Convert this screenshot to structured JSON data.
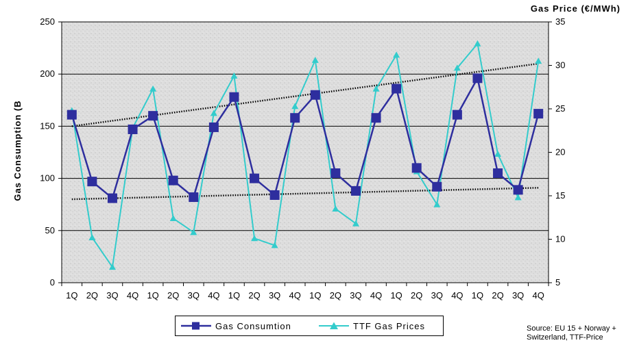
{
  "chart_data": {
    "type": "line",
    "categories": [
      "1Q",
      "2Q",
      "3Q",
      "4Q",
      "1Q",
      "2Q",
      "3Q",
      "4Q",
      "1Q",
      "2Q",
      "3Q",
      "4Q",
      "1Q",
      "2Q",
      "3Q",
      "4Q",
      "1Q",
      "2Q",
      "3Q",
      "4Q",
      "1Q",
      "2Q",
      "3Q",
      "4Q"
    ],
    "ylabel": "Gas Consumption (B",
    "y2label": "Gas Price (€/MWh)",
    "ylim": [
      0,
      250
    ],
    "y2lim": [
      5,
      35
    ],
    "yticks": [
      "0",
      "50",
      "100",
      "150",
      "200",
      "250"
    ],
    "y2ticks": [
      "5",
      "10",
      "15",
      "20",
      "25",
      "30",
      "35"
    ],
    "grid": true,
    "legend_position": "bottom",
    "series": [
      {
        "name": "Gas Consumtion",
        "axis": "left",
        "color": "#2e2e9e",
        "marker": "square",
        "values": [
          161,
          97,
          81,
          147,
          160,
          98,
          82,
          149,
          178,
          100,
          84,
          158,
          180,
          105,
          88,
          158,
          186,
          110,
          92,
          161,
          196,
          105,
          89,
          162
        ]
      },
      {
        "name": "TTF Gas Prices",
        "axis": "right",
        "color": "#33cccc",
        "marker": "triangle",
        "values": [
          24.8,
          10.2,
          6.8,
          22.8,
          27.3,
          12.4,
          10.8,
          24.5,
          28.8,
          10.1,
          9.3,
          25.3,
          30.6,
          13.5,
          11.8,
          27.3,
          31.2,
          17.8,
          14.0,
          29.7,
          32.5,
          19.8,
          14.8,
          30.5
        ]
      }
    ],
    "trendlines": [
      {
        "series": "Gas Consumtion peaks",
        "style": "dotted",
        "from": {
          "index": 0,
          "value": 150
        },
        "to": {
          "index": 23,
          "value": 210
        }
      },
      {
        "series": "Gas Consumtion troughs",
        "style": "dotted",
        "from": {
          "index": 0,
          "value": 80
        },
        "to": {
          "index": 23,
          "value": 91
        }
      }
    ]
  },
  "source": {
    "line1": "Source: EU 15 + Norway +",
    "line2": "Switzerland, TTF-Price"
  }
}
